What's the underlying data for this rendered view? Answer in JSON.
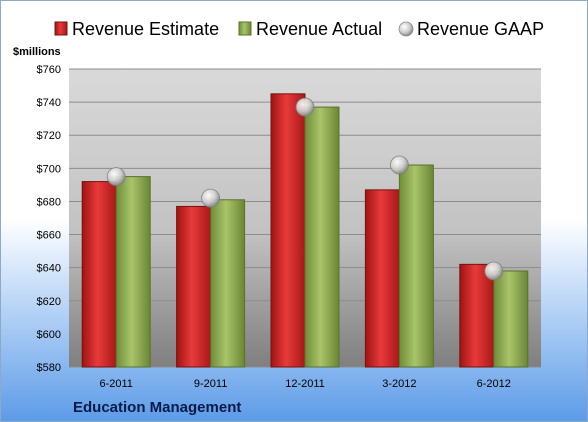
{
  "chart_data": {
    "type": "bar",
    "categories": [
      "6-2011",
      "9-2011",
      "12-2011",
      "3-2012",
      "6-2012"
    ],
    "series": [
      {
        "name": "Revenue Estimate",
        "kind": "bar",
        "color": "#d42a2a",
        "values": [
          692,
          677,
          745,
          687,
          642
        ]
      },
      {
        "name": "Revenue Actual",
        "kind": "bar",
        "color": "#8fac52",
        "values": [
          695,
          681,
          737,
          702,
          638
        ]
      },
      {
        "name": "Revenue GAAP",
        "kind": "marker",
        "color": "#c8c8c8",
        "values": [
          695,
          682,
          737,
          702,
          638
        ]
      }
    ],
    "ylabel": "$millions",
    "ylim": [
      580,
      760
    ],
    "yticks": [
      580,
      600,
      620,
      640,
      660,
      680,
      700,
      720,
      740,
      760
    ],
    "ytick_labels": [
      "$580",
      "$600",
      "$620",
      "$640",
      "$660",
      "$680",
      "$700",
      "$720",
      "$740",
      "$760"
    ],
    "legend_position": "top",
    "grid": true,
    "company": "Education Management"
  }
}
